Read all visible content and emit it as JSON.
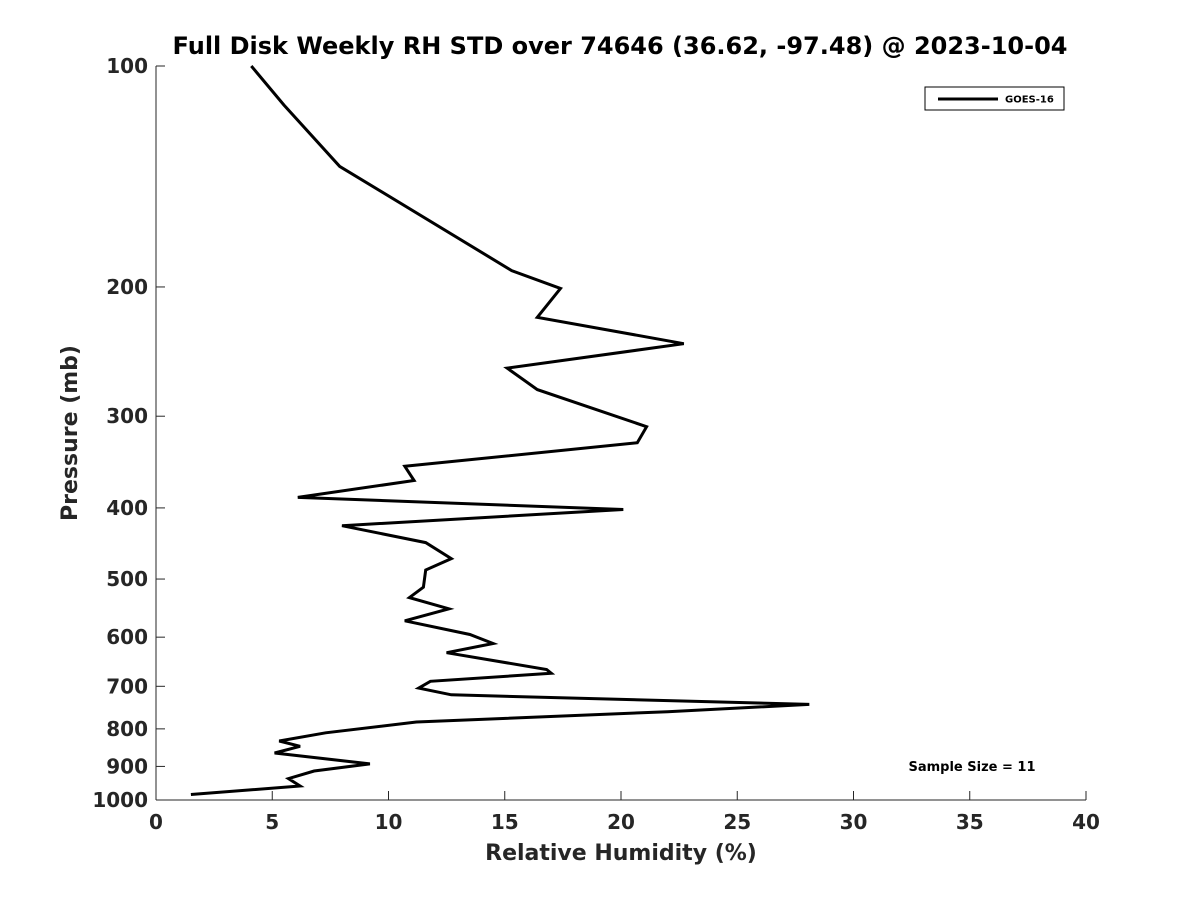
{
  "chart_data": {
    "type": "line",
    "title": "Full Disk Weekly RH STD over 74646 (36.62, -97.48) @ 2023-10-04",
    "xlabel": "Relative Humidity (%)",
    "ylabel": "Pressure (mb)",
    "xlim": [
      0,
      40
    ],
    "ylim": [
      100,
      1000
    ],
    "yscale": "log",
    "y_inverted": true,
    "xticks": [
      0,
      5,
      10,
      15,
      20,
      25,
      30,
      35,
      40
    ],
    "yticks": [
      100,
      200,
      300,
      400,
      500,
      600,
      700,
      800,
      900,
      1000
    ],
    "grid": false,
    "legend_position": "top-right",
    "annotation": "Sample Size = 11",
    "series": [
      {
        "name": "GOES-16",
        "color": "#000000",
        "x": [
          4.1,
          5.5,
          7.9,
          15.3,
          17.4,
          16.4,
          22.7,
          15.1,
          16.4,
          21.1,
          20.7,
          10.7,
          11.1,
          6.1,
          20.1,
          8.0,
          11.6,
          12.7,
          11.6,
          11.5,
          10.9,
          12.6,
          10.7,
          13.5,
          14.5,
          12.5,
          16.8,
          17.0,
          11.8,
          11.3,
          12.7,
          28.1,
          22.0,
          11.2,
          7.3,
          5.3,
          6.2,
          5.1,
          9.2,
          6.8,
          5.7,
          6.2,
          1.5
        ],
        "y": [
          100,
          113,
          137,
          190,
          201,
          220,
          239,
          258,
          276,
          310,
          326,
          351,
          367,
          387,
          402,
          423,
          446,
          469,
          486,
          513,
          530,
          549,
          570,
          595,
          612,
          630,
          664,
          672,
          689,
          704,
          719,
          741,
          758,
          783,
          810,
          831,
          845,
          863,
          893,
          913,
          935,
          957,
          983
        ]
      }
    ]
  }
}
